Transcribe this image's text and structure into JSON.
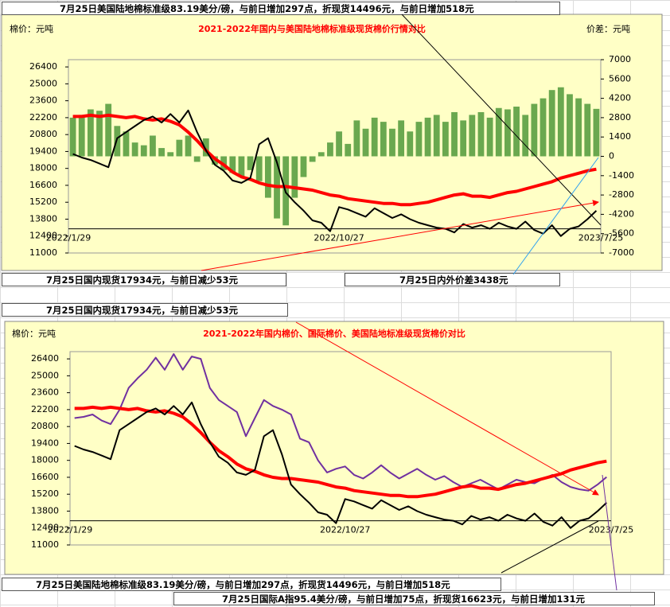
{
  "chart_data": [
    {
      "type": "bar_line",
      "title": "2021-2022年国内与美国陆地棉标准级现货棉价行情对比",
      "y_label": "棉价：元吨",
      "y2_label": "价差：元吨",
      "categories": [
        "2022/1/29",
        null,
        null,
        null,
        null,
        null,
        null,
        null,
        null,
        null,
        null,
        null,
        null,
        null,
        null,
        null,
        null,
        null,
        null,
        null,
        null,
        null,
        null,
        null,
        null,
        null,
        null,
        null,
        null,
        null,
        "2022/10/27",
        null,
        null,
        null,
        null,
        null,
        null,
        null,
        null,
        null,
        null,
        null,
        null,
        null,
        null,
        null,
        null,
        null,
        null,
        null,
        null,
        null,
        null,
        null,
        null,
        null,
        null,
        null,
        null,
        "2023/7/25"
      ],
      "ylim": [
        11000,
        27000
      ],
      "yticks": [
        11000,
        12400,
        13800,
        15200,
        16600,
        18000,
        19400,
        20800,
        22200,
        23600,
        25000,
        26400
      ],
      "y2lim": [
        -7000,
        7000
      ],
      "y2ticks": [
        -7000,
        -5600,
        -4200,
        -2800,
        -1400,
        0,
        1400,
        2800,
        4200,
        5600,
        7000
      ],
      "grid": false,
      "series": [
        {
          "kind": "bar",
          "axis": "y2",
          "color": "#6aa84f",
          "values": [
            2800,
            3000,
            3400,
            3300,
            3800,
            2200,
            1800,
            1000,
            800,
            1500,
            600,
            300,
            1200,
            1500,
            -400,
            1300,
            -600,
            -1000,
            -1200,
            -1500,
            -1000,
            -1800,
            -3000,
            -4500,
            -5000,
            -3000,
            -1500,
            -400,
            300,
            1000,
            1800,
            900,
            2600,
            2000,
            2800,
            2500,
            2000,
            2600,
            1800,
            2500,
            2800,
            3000,
            2500,
            3200,
            2600,
            3000,
            3200,
            2800,
            3500,
            3400,
            3600,
            3000,
            3800,
            4200,
            4800,
            5000,
            4500,
            4200,
            3800,
            3438
          ]
        },
        {
          "kind": "line",
          "color": "#ff0000",
          "width": 4,
          "values": [
            22300,
            22300,
            22400,
            22300,
            22400,
            22300,
            22200,
            22300,
            22100,
            22000,
            22100,
            21900,
            21600,
            21000,
            20300,
            19500,
            18800,
            18300,
            17700,
            17300,
            17100,
            16800,
            16600,
            16500,
            16500,
            16400,
            16300,
            16200,
            16000,
            15800,
            15700,
            15500,
            15400,
            15300,
            15200,
            15100,
            15100,
            15000,
            15000,
            15100,
            15200,
            15400,
            15600,
            15800,
            15900,
            15700,
            15700,
            15600,
            15800,
            16000,
            16100,
            16300,
            16500,
            16700,
            16900,
            17200,
            17400,
            17600,
            17800,
            17934
          ]
        },
        {
          "kind": "line",
          "color": "#000000",
          "width": 2,
          "values": [
            19200,
            18900,
            18700,
            18400,
            18100,
            20500,
            21000,
            21500,
            22000,
            22300,
            21800,
            22500,
            21800,
            22800,
            21000,
            19500,
            18300,
            17800,
            17000,
            16800,
            17200,
            20000,
            20500,
            18500,
            16000,
            15200,
            14500,
            13700,
            13500,
            12800,
            14800,
            14600,
            14300,
            14000,
            14700,
            14300,
            13900,
            14200,
            13800,
            13500,
            13300,
            13100,
            13000,
            12700,
            13400,
            13100,
            13300,
            13000,
            13500,
            13200,
            13000,
            13600,
            12900,
            12600,
            13300,
            12400,
            13000,
            13200,
            13800,
            14496
          ]
        }
      ]
    },
    {
      "type": "line",
      "title": "2021-2022年国内棉价、国际棉价、美国陆地标准级现货棉价对比",
      "y_label": "棉价：元吨",
      "categories": [
        "2022/1/29",
        null,
        null,
        null,
        null,
        null,
        null,
        null,
        null,
        null,
        null,
        null,
        null,
        null,
        null,
        null,
        null,
        null,
        null,
        null,
        null,
        null,
        null,
        null,
        null,
        null,
        null,
        null,
        null,
        null,
        "2022/10/27",
        null,
        null,
        null,
        null,
        null,
        null,
        null,
        null,
        null,
        null,
        null,
        null,
        null,
        null,
        null,
        null,
        null,
        null,
        null,
        null,
        null,
        null,
        null,
        null,
        null,
        null,
        null,
        null,
        "2023/7/25"
      ],
      "ylim": [
        11000,
        27000
      ],
      "yticks": [
        11000,
        12400,
        13800,
        15200,
        16600,
        18000,
        19400,
        20800,
        22200,
        23600,
        25000,
        26400
      ],
      "grid": false,
      "series": [
        {
          "kind": "line",
          "color": "#7030a0",
          "width": 2,
          "values": [
            21500,
            21600,
            21800,
            21300,
            21000,
            22200,
            24000,
            24800,
            25500,
            26500,
            25500,
            26800,
            25500,
            26600,
            26400,
            24000,
            23000,
            22500,
            22000,
            20000,
            21500,
            23000,
            22500,
            22200,
            21800,
            19800,
            19500,
            18000,
            17000,
            17300,
            17500,
            16800,
            16500,
            17000,
            17600,
            17000,
            16500,
            16900,
            17300,
            16800,
            16400,
            16700,
            16200,
            15800,
            16100,
            16400,
            16000,
            15600,
            16000,
            16400,
            16200,
            16100,
            16500,
            16800,
            16200,
            15800,
            15600,
            15500,
            16000,
            16623
          ]
        },
        {
          "kind": "line",
          "color": "#ff0000",
          "width": 4,
          "values": [
            22300,
            22300,
            22400,
            22300,
            22400,
            22300,
            22200,
            22300,
            22100,
            22000,
            22100,
            21900,
            21600,
            21000,
            20300,
            19500,
            18800,
            18300,
            17700,
            17300,
            17100,
            16800,
            16600,
            16500,
            16500,
            16400,
            16300,
            16200,
            16000,
            15800,
            15700,
            15500,
            15400,
            15300,
            15200,
            15100,
            15100,
            15000,
            15000,
            15100,
            15200,
            15400,
            15600,
            15800,
            15900,
            15700,
            15700,
            15600,
            15800,
            16000,
            16100,
            16300,
            16500,
            16700,
            16900,
            17200,
            17400,
            17600,
            17800,
            17934
          ]
        },
        {
          "kind": "line",
          "color": "#000000",
          "width": 2,
          "values": [
            19200,
            18900,
            18700,
            18400,
            18100,
            20500,
            21000,
            21500,
            22000,
            22300,
            21800,
            22500,
            21800,
            22800,
            21000,
            19500,
            18300,
            17800,
            17000,
            16800,
            17200,
            20000,
            20500,
            18500,
            16000,
            15200,
            14500,
            13700,
            13500,
            12800,
            14800,
            14600,
            14300,
            14000,
            14700,
            14300,
            13900,
            14200,
            13800,
            13500,
            13300,
            13100,
            13000,
            12700,
            13400,
            13100,
            13300,
            13000,
            13500,
            13200,
            13000,
            13600,
            12900,
            12600,
            13300,
            12400,
            13000,
            13200,
            13800,
            14496
          ]
        }
      ]
    }
  ],
  "text_boxes": [
    "7月25日美国陆地棉标准级83.19美分/磅，与前日增加297点，折现货14496元，与前日增加518元",
    "7月25日国内现货17934元，与前日减少53元",
    "7月25日内外价差3438元",
    "7月25日国内现货17934元，与前日减少53元",
    "7月25日美国陆地棉标准级83.19美分/磅，与前日增加297点，折现货14496元，与前日增加518元",
    "7月25日国际A指95.4美分/磅，与前日增加75点，折现货16623元，与前日增加131元"
  ]
}
